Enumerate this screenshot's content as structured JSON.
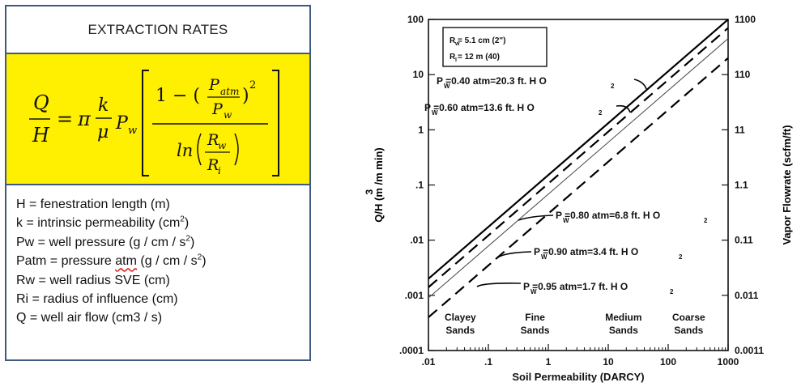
{
  "panel": {
    "title": "EXTRACTION RATES",
    "formula": {
      "lhs_num": "Q",
      "lhs_den": "H",
      "equals": "=",
      "pi": "π",
      "k": "k",
      "mu": "μ",
      "pw": "P",
      "pw_sub": "w",
      "one_minus": "1 − (",
      "patm": "P",
      "patm_sub": "atm",
      "pw2": "P",
      "pw2_sub": "w",
      "close_sq": ")",
      "sq": "2",
      "ln": "ln",
      "rw": "R",
      "rw_sub": "w",
      "ri": "R",
      "ri_sub": "i"
    },
    "definitions": [
      {
        "pre": "H = fenestration length (m)",
        "sup": "",
        "post": ""
      },
      {
        "pre": "k = intrinsic permeability (cm",
        "sup": "2",
        "post": ")"
      },
      {
        "pre": "Pw = well pressure (g / cm / s",
        "sup": "2",
        "post": ")"
      },
      {
        "pre": "Patm = pressure ",
        "squiggle": "atm",
        "pre2": " (g / cm / s",
        "sup": "2",
        "post": ")"
      },
      {
        "pre": "Rw = well radius SVE (cm)",
        "sup": "",
        "post": ""
      },
      {
        "pre": "Ri = radius of influence (cm)",
        "sup": "",
        "post": ""
      },
      {
        "pre": "Q = well air flow (cm3 / s)",
        "sup": "",
        "post": ""
      }
    ]
  },
  "chart_data": {
    "type": "line",
    "x_scale": "log",
    "y_scale": "log",
    "xlim": [
      0.01,
      1000
    ],
    "ylim": [
      0.0001,
      100
    ],
    "x_ticks": [
      ".01",
      ".1",
      "1",
      "10",
      "100",
      "1000"
    ],
    "y_ticks": [
      "100",
      "10",
      "1",
      ".1",
      ".01",
      ".001",
      ".0001"
    ],
    "y2_ticks": [
      "1100",
      "110",
      "11",
      "1.1",
      "0.11",
      "0.011",
      "0.0011"
    ],
    "xlabel": "Soil Permeability (DARCY)",
    "ylabel_main": "Q/H",
    "ylabel_exp": "3",
    "ylabel_units": "(m /m min)",
    "y2label": "Vapor Flowrate (scfm/ft)",
    "inset": {
      "line1": "R  = 5.1 cm (2\")",
      "line1_sub": "w",
      "line2": "R  = 12 m (40)",
      "line2_sub": "I"
    },
    "soil_classes": [
      {
        "top": "Clayey",
        "bottom": "Sands"
      },
      {
        "top": "Fine",
        "bottom": "Sands"
      },
      {
        "top": "Medium",
        "bottom": "Sands"
      },
      {
        "top": "Coarse",
        "bottom": "Sands"
      }
    ],
    "series": [
      {
        "name": "P  =0.40 atm=20.3 ft. H O",
        "style": "solid",
        "points": [
          [
            0.01,
            0.002
          ],
          [
            1000,
            100
          ]
        ]
      },
      {
        "name": "P  =0.60 atm=13.6 ft. H O",
        "style": "dashed",
        "points": [
          [
            0.01,
            0.0014
          ],
          [
            1000,
            70
          ]
        ]
      },
      {
        "name": "P  =0.80 atm=6.8 ft. H O",
        "style": "thin",
        "points": [
          [
            0.01,
            0.0009
          ],
          [
            1000,
            45
          ]
        ]
      },
      {
        "name": "P  =0.90 atm=3.4 ft. H O",
        "style": "dashed",
        "points": [
          [
            0.01,
            0.0004
          ],
          [
            1000,
            20
          ]
        ]
      },
      {
        "name": "P  =0.95 atm=1.7 ft. H O",
        "style": "none",
        "points": []
      }
    ],
    "label_sub": "W",
    "label_sub2": "2",
    "grid": false
  }
}
